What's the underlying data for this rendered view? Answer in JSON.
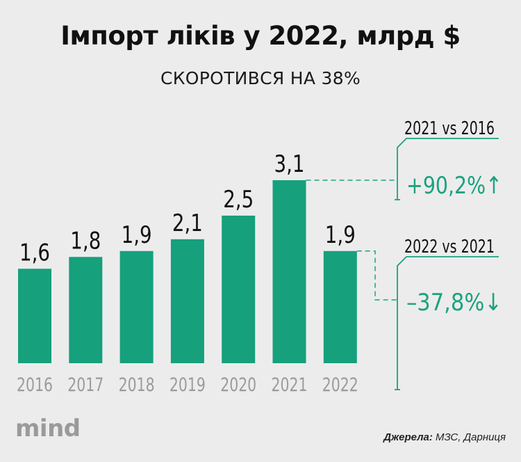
{
  "chart_data": {
    "type": "bar",
    "title": "Імпорт ліків у 2022, млрд $",
    "subtitle": "СКОРОТИВСЯ НА 38%",
    "categories": [
      "2016",
      "2017",
      "2018",
      "2019",
      "2020",
      "2021",
      "2022"
    ],
    "values": [
      1.6,
      1.8,
      1.9,
      2.1,
      2.5,
      3.1,
      1.9
    ],
    "value_labels": [
      "1,6",
      "1,8",
      "1,9",
      "2,1",
      "2,5",
      "3,1",
      "1,9"
    ],
    "ylim": [
      0,
      3.1
    ],
    "grid": false,
    "comparisons": [
      {
        "title": "2021 vs 2016",
        "value": "+90,2%",
        "arrow": "↑"
      },
      {
        "title": "2022 vs 2021",
        "value": "–37,8%",
        "arrow": "↓"
      }
    ]
  },
  "colors": {
    "bar": "#16a07c",
    "accent": "#1aa37f",
    "background": "#ececec",
    "tick": "#9b9b9b"
  },
  "logo": "mind",
  "source": {
    "label": "Джерела:",
    "text": " МЗС, Дарниця"
  }
}
